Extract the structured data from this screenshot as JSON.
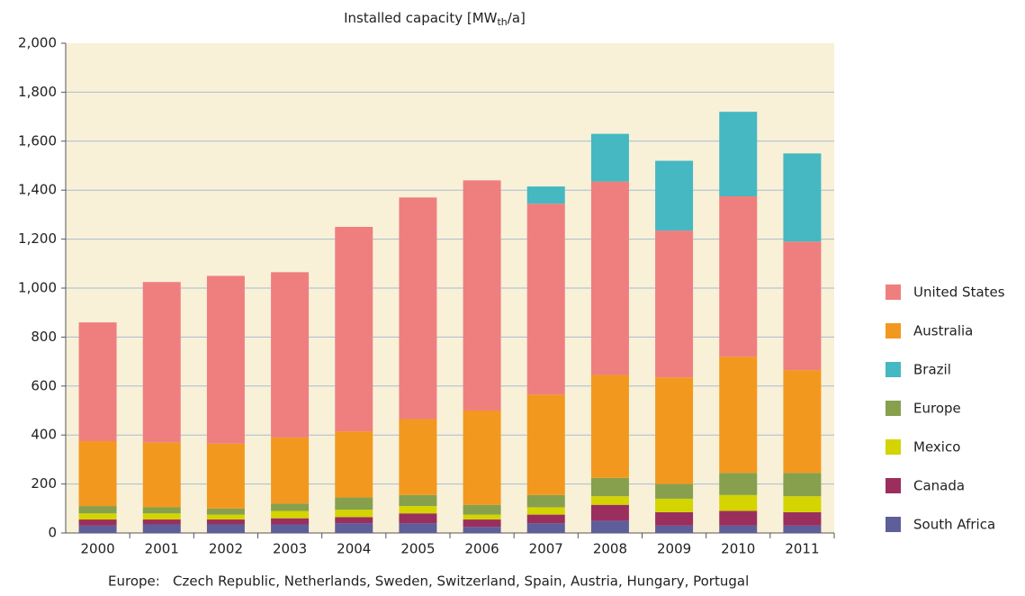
{
  "chart_data": {
    "type": "stacked_bar",
    "title": [
      "Installed capacity [MW",
      "th",
      "/a]"
    ],
    "categories": [
      "2000",
      "2001",
      "2002",
      "2003",
      "2004",
      "2005",
      "2006",
      "2007",
      "2008",
      "2009",
      "2010",
      "2011"
    ],
    "series": [
      {
        "name": "United States",
        "color": "#ef7f7f",
        "values": [
          485,
          655,
          685,
          675,
          835,
          905,
          940,
          780,
          790,
          600,
          655,
          525
        ]
      },
      {
        "name": "Australia",
        "color": "#f3981f",
        "values": [
          265,
          265,
          265,
          270,
          270,
          310,
          385,
          410,
          420,
          435,
          475,
          420
        ]
      },
      {
        "name": "Brazil",
        "color": "#45b8c2",
        "values": [
          0,
          0,
          0,
          0,
          0,
          0,
          0,
          70,
          195,
          285,
          345,
          360
        ]
      },
      {
        "name": "Europe",
        "color": "#86a04e",
        "values": [
          30,
          25,
          25,
          30,
          50,
          45,
          40,
          50,
          75,
          60,
          90,
          95
        ]
      },
      {
        "name": "Mexico",
        "color": "#d4d400",
        "values": [
          25,
          25,
          20,
          30,
          30,
          30,
          20,
          30,
          35,
          55,
          65,
          65
        ]
      },
      {
        "name": "Canada",
        "color": "#9a2f5e",
        "values": [
          25,
          20,
          20,
          25,
          25,
          40,
          30,
          35,
          65,
          55,
          60,
          55
        ]
      },
      {
        "name": "South Africa",
        "color": "#5e5e9a",
        "values": [
          30,
          35,
          35,
          35,
          40,
          40,
          25,
          40,
          50,
          30,
          30,
          30
        ]
      }
    ],
    "ylim": [
      0,
      2000
    ],
    "yticks": [
      0,
      200,
      400,
      600,
      800,
      {
        "value": 1000,
        "label": "1,000"
      },
      {
        "value": 1200,
        "label": "1,200"
      },
      {
        "value": 1400,
        "label": "1,400"
      },
      {
        "value": 1600,
        "label": "1,600"
      },
      {
        "value": 1800,
        "label": "1,800"
      },
      {
        "value": 2000,
        "label": "2,000"
      }
    ],
    "grid": true,
    "note_label": "Europe:",
    "note": "Czech Republic, Netherlands, Sweden, Switzerland, Spain, Austria, Hungary, Portugal"
  }
}
